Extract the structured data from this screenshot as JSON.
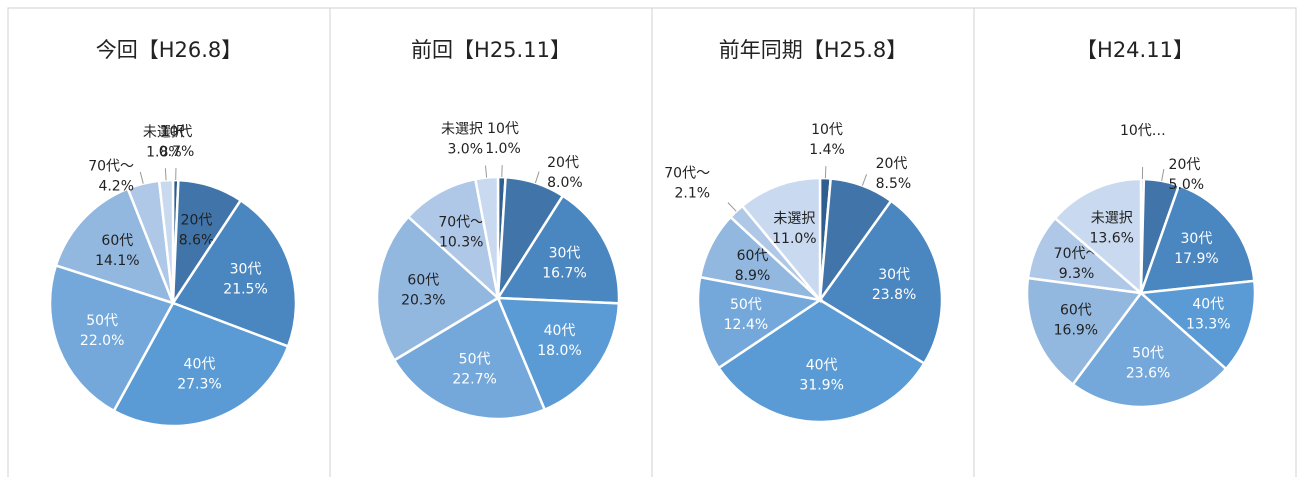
{
  "chart_data": [
    {
      "type": "pie",
      "title": "今回【H26.8】",
      "categories": [
        "10代",
        "20代",
        "30代",
        "40代",
        "50代",
        "60代",
        "70代～",
        "未選択"
      ],
      "values": [
        0.7,
        8.6,
        21.5,
        27.3,
        22.0,
        14.1,
        4.2,
        1.8
      ],
      "value_labels": [
        "0.7%",
        "8.6%",
        "21.5%",
        "27.3%",
        "22.0%",
        "14.1%",
        "4.2%",
        "1.8%"
      ],
      "colors": [
        "#2e5f8f",
        "#4174a8",
        "#4a86c0",
        "#5b9bd5",
        "#74a8db",
        "#93b8e0",
        "#afc8e7",
        "#c9d9ef"
      ]
    },
    {
      "type": "pie",
      "title": "前回【H25.11】",
      "categories": [
        "10代",
        "20代",
        "30代",
        "40代",
        "50代",
        "60代",
        "70代～",
        "未選択"
      ],
      "values": [
        1.0,
        8.0,
        16.7,
        18.0,
        22.7,
        20.3,
        10.3,
        3.0
      ],
      "value_labels": [
        "1.0%",
        "8.0%",
        "16.7%",
        "18.0%",
        "22.7%",
        "20.3%",
        "10.3%",
        "3.0%"
      ],
      "colors": [
        "#2e5f8f",
        "#4174a8",
        "#4a86c0",
        "#5b9bd5",
        "#74a8db",
        "#93b8e0",
        "#afc8e7",
        "#c9d9ef"
      ]
    },
    {
      "type": "pie",
      "title": "前年同期【H25.8】",
      "categories": [
        "10代",
        "20代",
        "30代",
        "40代",
        "50代",
        "60代",
        "70代～",
        "未選択"
      ],
      "values": [
        1.4,
        8.5,
        23.8,
        31.9,
        12.4,
        8.9,
        2.1,
        11.0
      ],
      "value_labels": [
        "1.4%",
        "8.5%",
        "23.8%",
        "31.9%",
        "12.4%",
        "8.9%",
        "2.1%",
        "11.0%"
      ],
      "colors": [
        "#2e5f8f",
        "#4174a8",
        "#4a86c0",
        "#5b9bd5",
        "#74a8db",
        "#93b8e0",
        "#afc8e7",
        "#c9d9ef"
      ]
    },
    {
      "type": "pie",
      "title": "【H24.11】",
      "categories": [
        "10代…",
        "20代",
        "30代",
        "40代",
        "50代",
        "60代",
        "70代～",
        "未選択"
      ],
      "values": [
        0.4,
        5.0,
        17.9,
        13.3,
        23.6,
        16.9,
        9.3,
        13.6
      ],
      "value_labels": [
        null,
        "5.0%",
        "17.9%",
        "13.3%",
        "23.6%",
        "16.9%",
        "9.3%",
        "13.6%"
      ],
      "colors": [
        "#2e5f8f",
        "#4174a8",
        "#4a86c0",
        "#5b9bd5",
        "#74a8db",
        "#93b8e0",
        "#afc8e7",
        "#c9d9ef"
      ]
    }
  ]
}
